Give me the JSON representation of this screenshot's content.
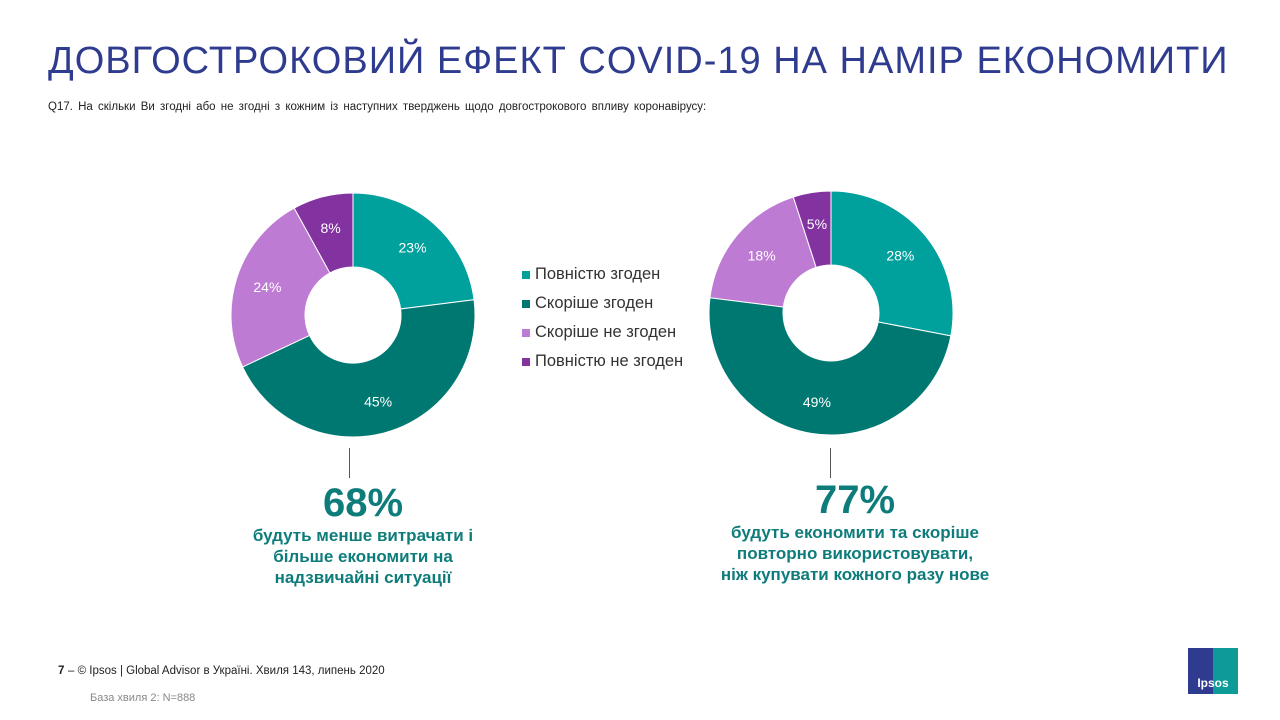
{
  "title": "ДОВГОСТРОКОВИЙ ЕФЕКТ COVID-19 НА НАМІР ЕКОНОМИТИ",
  "question": "Q17. На скільки Ви згодні або не згодні з кожним із наступних тверджень щодо довгострокового впливу коронавірусу:",
  "colors": {
    "title": "#2E3B8E",
    "accent": "#0E7C7B",
    "series": [
      "#00A09D",
      "#007872",
      "#BE7BD3",
      "#8233A0"
    ]
  },
  "legend": [
    {
      "label": "Повністю згоден",
      "color": "#00A09D"
    },
    {
      "label": "Скоріше згоден",
      "color": "#007872"
    },
    {
      "label": "Скоріше не згоден",
      "color": "#BE7BD3"
    },
    {
      "label": "Повністю не згоден",
      "color": "#8233A0"
    }
  ],
  "chart_data": [
    {
      "type": "pie",
      "style": "donut",
      "categories": [
        "Повністю згоден",
        "Скоріше згоден",
        "Скоріше не згоден",
        "Повністю не згоден"
      ],
      "values": [
        23,
        45,
        24,
        8
      ],
      "labels": [
        "23%",
        "45%",
        "24%",
        "8%"
      ]
    },
    {
      "type": "pie",
      "style": "donut",
      "categories": [
        "Повністю згоден",
        "Скоріше згоден",
        "Скоріше не згоден",
        "Повністю не згоден"
      ],
      "values": [
        28,
        49,
        18,
        5
      ],
      "labels": [
        "28%",
        "49%",
        "18%",
        "5%"
      ]
    }
  ],
  "stats": [
    {
      "value": "68%",
      "text": "будуть  менше витрачати і\nбільше економити на\nнадзвичайні ситуації"
    },
    {
      "value": "77%",
      "text": "будуть економити та скоріше\nповторно використовувати,\nніж купувати кожного разу нове"
    }
  ],
  "footer": {
    "page_number": "7",
    "source": "–  © Ipsos | Global Advisor в Україні. Хвиля 143, липень 2020",
    "base": "База хвиля 2: N=888"
  },
  "logo_text": "Ipsos"
}
